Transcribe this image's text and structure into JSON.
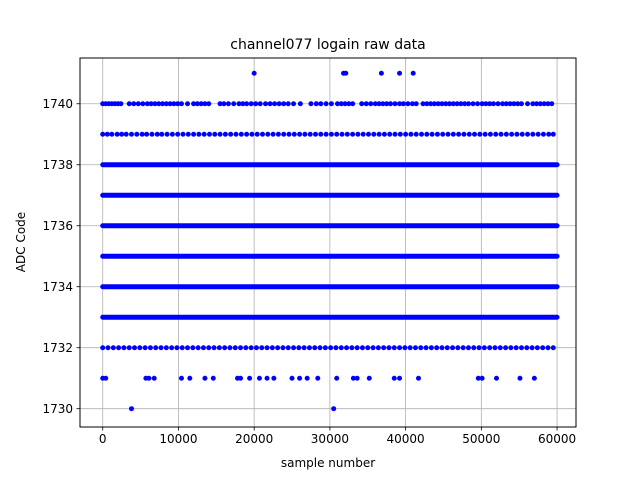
{
  "chart_data": {
    "type": "scatter",
    "title": "channel077 logain raw data",
    "xlabel": "sample number",
    "ylabel": "ADC Code",
    "xlim": [
      -3000,
      62500
    ],
    "ylim": [
      1729.4,
      1741.5
    ],
    "xticks": [
      0,
      10000,
      20000,
      30000,
      40000,
      50000,
      60000
    ],
    "xtick_labels": [
      "0",
      "10000",
      "20000",
      "30000",
      "40000",
      "50000",
      "60000"
    ],
    "yticks": [
      1730,
      1732,
      1734,
      1736,
      1738,
      1740
    ],
    "ytick_labels": [
      "1730",
      "1732",
      "1734",
      "1736",
      "1738",
      "1740"
    ],
    "grid": true,
    "legend": "none",
    "marker_color": "#0000ff",
    "series": [
      {
        "dense_bands": [
          {
            "y": 1733,
            "x_range": [
              0,
              60000
            ]
          },
          {
            "y": 1734,
            "x_range": [
              0,
              60000
            ]
          },
          {
            "y": 1735,
            "x_range": [
              0,
              60000
            ]
          },
          {
            "y": 1736,
            "x_range": [
              0,
              60000
            ]
          },
          {
            "y": 1737,
            "x_range": [
              0,
              60000
            ]
          },
          {
            "y": 1738,
            "x_range": [
              0,
              60000
            ]
          }
        ],
        "rows": [
          {
            "y": 1739,
            "x": [
              0,
              600,
              1200,
              1900,
              2500,
              3100,
              3800,
              4500,
              5200,
              5800,
              6500,
              7200,
              7800,
              8500,
              9200,
              9900,
              10600,
              11300,
              12000,
              12700,
              13400,
              14100,
              14800,
              15500,
              16200,
              16900,
              17600,
              18300,
              19000,
              19700,
              20400,
              21100,
              21800,
              22500,
              23200,
              23900,
              24600,
              25300,
              26000,
              26700,
              27400,
              28100,
              28800,
              29500,
              30200,
              30900,
              31600,
              32300,
              33000,
              33700,
              34400,
              35100,
              35800,
              36500,
              37200,
              37900,
              38600,
              39300,
              40000,
              40700,
              41400,
              42100,
              42800,
              43500,
              44200,
              44900,
              45600,
              46300,
              47000,
              47700,
              48400,
              49100,
              49800,
              50500,
              51200,
              51900,
              52600,
              53300,
              54000,
              54700,
              55400,
              56100,
              56800,
              57500,
              58200,
              58900,
              59500
            ]
          },
          {
            "y": 1732,
            "x": [
              0,
              700,
              1400,
              2100,
              2800,
              3500,
              4200,
              4900,
              5600,
              6300,
              7000,
              7700,
              8400,
              9100,
              9800,
              10500,
              11200,
              11900,
              12600,
              13300,
              14000,
              14700,
              15400,
              16100,
              16800,
              17500,
              18200,
              18900,
              19600,
              20300,
              21000,
              21700,
              22400,
              23100,
              23800,
              24500,
              25200,
              25900,
              26600,
              27300,
              28000,
              28700,
              29400,
              30100,
              30800,
              31500,
              32200,
              32900,
              33600,
              34300,
              35000,
              35700,
              36400,
              37100,
              37800,
              38500,
              39200,
              39900,
              40600,
              41300,
              42000,
              42700,
              43400,
              44100,
              44800,
              45500,
              46200,
              46900,
              47600,
              48300,
              49000,
              49700,
              50400,
              51100,
              51800,
              52500,
              53200,
              53900,
              54600,
              55300,
              56000,
              56700,
              57400,
              58100,
              58800,
              59500
            ]
          },
          {
            "y": 1740,
            "x": [
              0,
              400,
              800,
              1200,
              1600,
              2000,
              2400,
              3500,
              4100,
              4700,
              5300,
              5900,
              6400,
              6900,
              7400,
              7900,
              8400,
              8900,
              9400,
              9900,
              10400,
              11200,
              12000,
              12500,
              13000,
              13500,
              14000,
              15500,
              16000,
              16600,
              17300,
              18000,
              18500,
              19000,
              19600,
              20200,
              20800,
              21500,
              22100,
              22700,
              23300,
              23900,
              24500,
              25200,
              26100,
              27500,
              28200,
              28800,
              29500,
              30200,
              31000,
              31500,
              32000,
              32500,
              33000,
              34200,
              34800,
              35400,
              36000,
              36500,
              37000,
              37500,
              38000,
              38600,
              39200,
              39700,
              40300,
              40900,
              41400,
              42300,
              42800,
              43300,
              43800,
              44300,
              44800,
              45300,
              45800,
              46300,
              46800,
              47300,
              47800,
              48300,
              48900,
              49500,
              50100,
              50600,
              51100,
              51600,
              52200,
              52800,
              53300,
              53800,
              54300,
              54800,
              55300,
              56100,
              56800,
              57300,
              57800,
              58300,
              58800,
              59300
            ]
          },
          {
            "y": 1741,
            "x": [
              20000,
              31800,
              32100,
              36800,
              39200,
              41000
            ]
          },
          {
            "y": 1731,
            "x": [
              0,
              400,
              5700,
              6100,
              6800,
              10400,
              11500,
              13500,
              14600,
              17800,
              18200,
              19400,
              20700,
              21700,
              22600,
              25000,
              26000,
              27000,
              28400,
              30900,
              33100,
              33600,
              35200,
              38500,
              39200,
              41700,
              49600,
              50100,
              52000,
              55100,
              57000
            ]
          },
          {
            "y": 1730,
            "x": [
              3800,
              30500
            ]
          }
        ]
      }
    ]
  }
}
